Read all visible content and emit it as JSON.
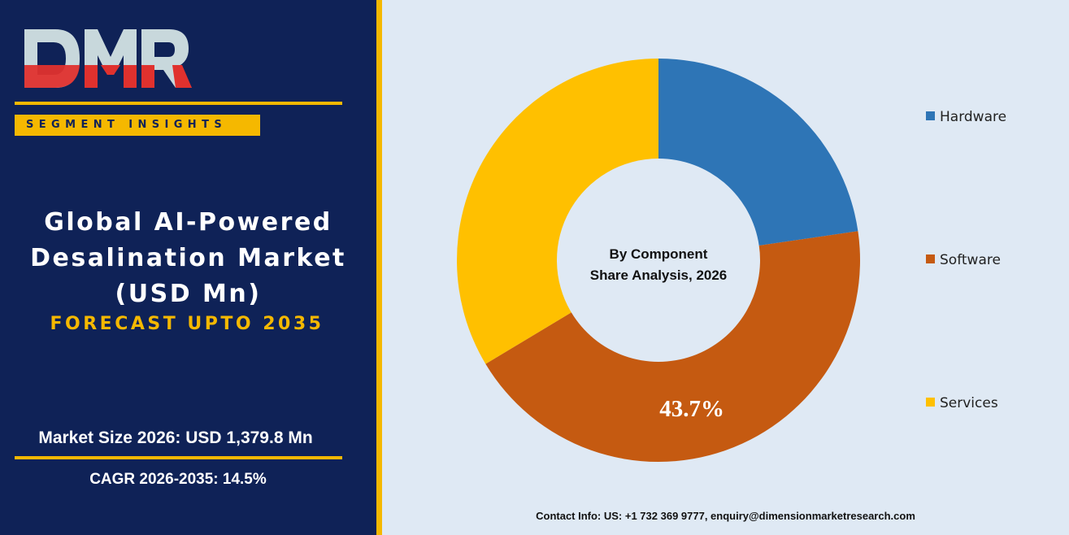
{
  "brand": {
    "logo_text": "DMR",
    "badge": "SEGMENT INSIGHTS"
  },
  "title": {
    "line1": "Global AI-Powered",
    "line2": "Desalination Market",
    "line3": "(USD Mn)"
  },
  "forecast": "FORECAST UPTO 2035",
  "stats": {
    "market_size": "Market Size 2026: USD 1,379.8 Mn",
    "cagr": "CAGR 2026-2035: 14.5%"
  },
  "contact": "Contact Info: US: +1 732 369 9777, enquiry@dimensionmarketresearch.com",
  "colors": {
    "panel": "#0f2257",
    "accent": "#f5b800",
    "hardware": "#2e75b6",
    "software": "#c55a11",
    "services": "#ffc000"
  },
  "chart_data": {
    "type": "pie",
    "donut": true,
    "center_label": [
      "By Component",
      "Share Analysis, 2026"
    ],
    "categories": [
      "Hardware",
      "Software",
      "Services"
    ],
    "values": [
      22.7,
      43.7,
      33.6
    ],
    "data_labels": [
      "",
      "43.7%",
      ""
    ],
    "legend_position": "right",
    "colors": [
      "#2e75b6",
      "#c55a11",
      "#ffc000"
    ]
  }
}
